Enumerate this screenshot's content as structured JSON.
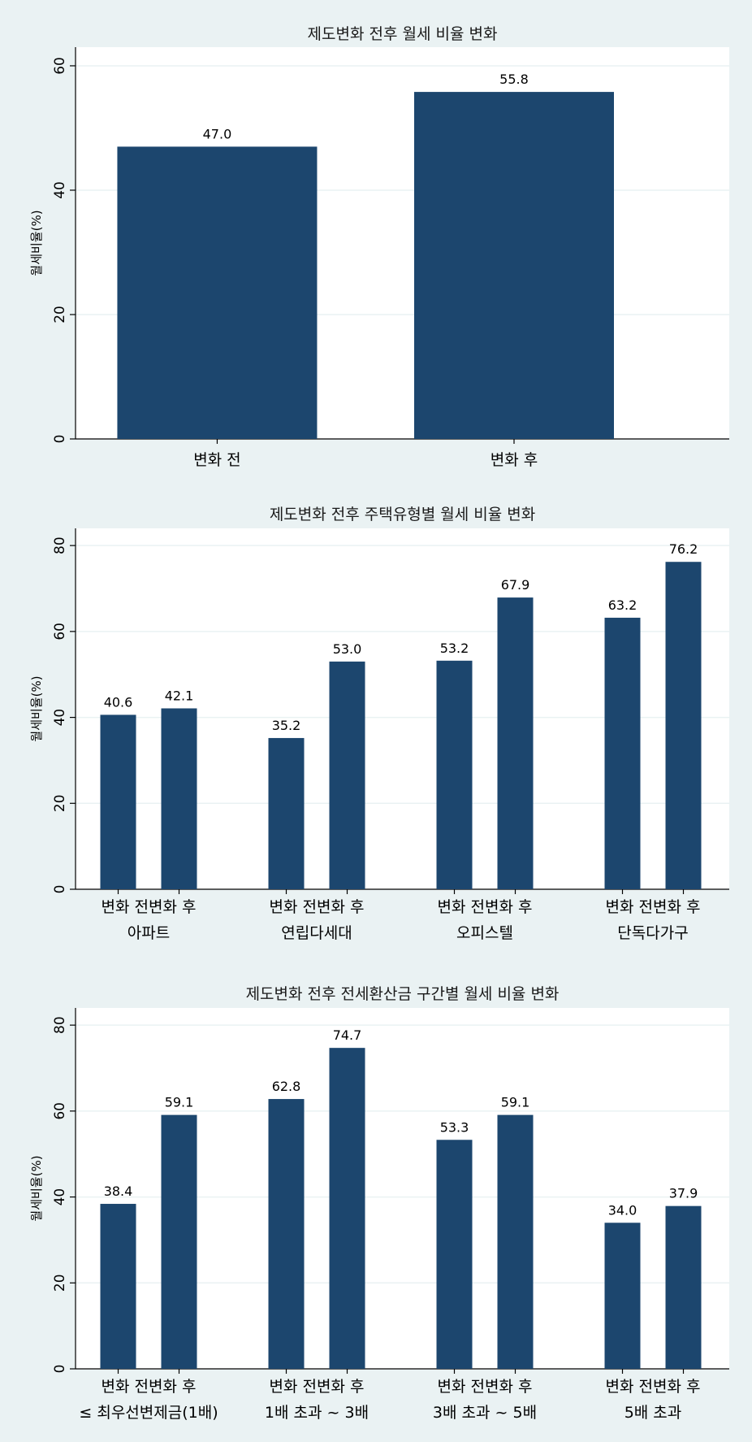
{
  "chart_data": [
    {
      "type": "bar",
      "title": "제도변화 전후 월세 비율 변화",
      "ylabel": "월세비율(%)",
      "ylim": [
        0,
        63
      ],
      "yticks": [
        0,
        20,
        40,
        60
      ],
      "groups": [
        {
          "label": "",
          "bars": [
            {
              "label": "변화 전",
              "value": 47.0,
              "value_label": "47.0"
            },
            {
              "label": "변화 후",
              "value": 55.8,
              "value_label": "55.8"
            }
          ]
        }
      ],
      "colors": {
        "bar": "#1c466e",
        "plot_bg": "#ffffff",
        "grid": "#eaf2f3"
      },
      "grid": true
    },
    {
      "type": "bar",
      "title": "제도변화 전후 주택유형별 월세 비율 변화",
      "ylabel": "월세비율(%)",
      "ylim": [
        0,
        84
      ],
      "yticks": [
        0,
        20,
        40,
        60,
        80
      ],
      "groups": [
        {
          "label": "아파트",
          "bars": [
            {
              "label": "변화 전",
              "value": 40.6,
              "value_label": "40.6"
            },
            {
              "label": "변화 후",
              "value": 42.1,
              "value_label": "42.1"
            }
          ]
        },
        {
          "label": "연립다세대",
          "bars": [
            {
              "label": "변화 전",
              "value": 35.2,
              "value_label": "35.2"
            },
            {
              "label": "변화 후",
              "value": 53.0,
              "value_label": "53.0"
            }
          ]
        },
        {
          "label": "오피스텔",
          "bars": [
            {
              "label": "변화 전",
              "value": 53.2,
              "value_label": "53.2"
            },
            {
              "label": "변화 후",
              "value": 67.9,
              "value_label": "67.9"
            }
          ]
        },
        {
          "label": "단독다가구",
          "bars": [
            {
              "label": "변화 전",
              "value": 63.2,
              "value_label": "63.2"
            },
            {
              "label": "변화 후",
              "value": 76.2,
              "value_label": "76.2"
            }
          ]
        }
      ],
      "colors": {
        "bar": "#1c466e",
        "plot_bg": "#ffffff",
        "grid": "#eaf2f3"
      },
      "grid": true
    },
    {
      "type": "bar",
      "title": "제도변화 전후 전세환산금 구간별 월세 비율 변화",
      "ylabel": "월세비율(%)",
      "ylim": [
        0,
        84
      ],
      "yticks": [
        0,
        20,
        40,
        60,
        80
      ],
      "groups": [
        {
          "label": "≤ 최우선변제금(1배)",
          "bars": [
            {
              "label": "변화 전",
              "value": 38.4,
              "value_label": "38.4"
            },
            {
              "label": "변화 후",
              "value": 59.1,
              "value_label": "59.1"
            }
          ]
        },
        {
          "label": "1배 초과 ~ 3배",
          "bars": [
            {
              "label": "변화 전",
              "value": 62.8,
              "value_label": "62.8"
            },
            {
              "label": "변화 후",
              "value": 74.7,
              "value_label": "74.7"
            }
          ]
        },
        {
          "label": "3배 초과 ~ 5배",
          "bars": [
            {
              "label": "변화 전",
              "value": 53.3,
              "value_label": "53.3"
            },
            {
              "label": "변화 후",
              "value": 59.1,
              "value_label": "59.1"
            }
          ]
        },
        {
          "label": "5배 초과",
          "bars": [
            {
              "label": "변화 전",
              "value": 34.0,
              "value_label": "34.0"
            },
            {
              "label": "변화 후",
              "value": 37.9,
              "value_label": "37.9"
            }
          ]
        }
      ],
      "colors": {
        "bar": "#1c466e",
        "plot_bg": "#ffffff",
        "grid": "#eaf2f3"
      },
      "grid": true
    }
  ]
}
